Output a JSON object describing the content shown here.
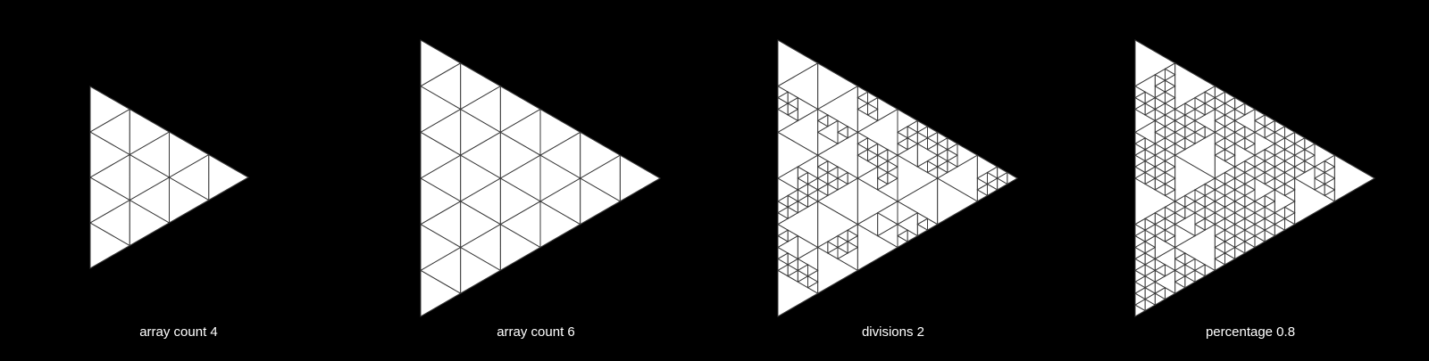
{
  "colors": {
    "background": "#000000",
    "fill": "#ffffff",
    "line": "#3a3a3a"
  },
  "panels": [
    {
      "caption": "array count 4",
      "mode": "array",
      "count": 4
    },
    {
      "caption": "array count 6",
      "mode": "array",
      "count": 6
    },
    {
      "caption": "divisions 2",
      "mode": "divisions",
      "count": 6,
      "divisions": 2
    },
    {
      "caption": "percentage 0.8",
      "mode": "percentage",
      "count": 6,
      "divisions": 2,
      "percentage": 0.8
    }
  ]
}
